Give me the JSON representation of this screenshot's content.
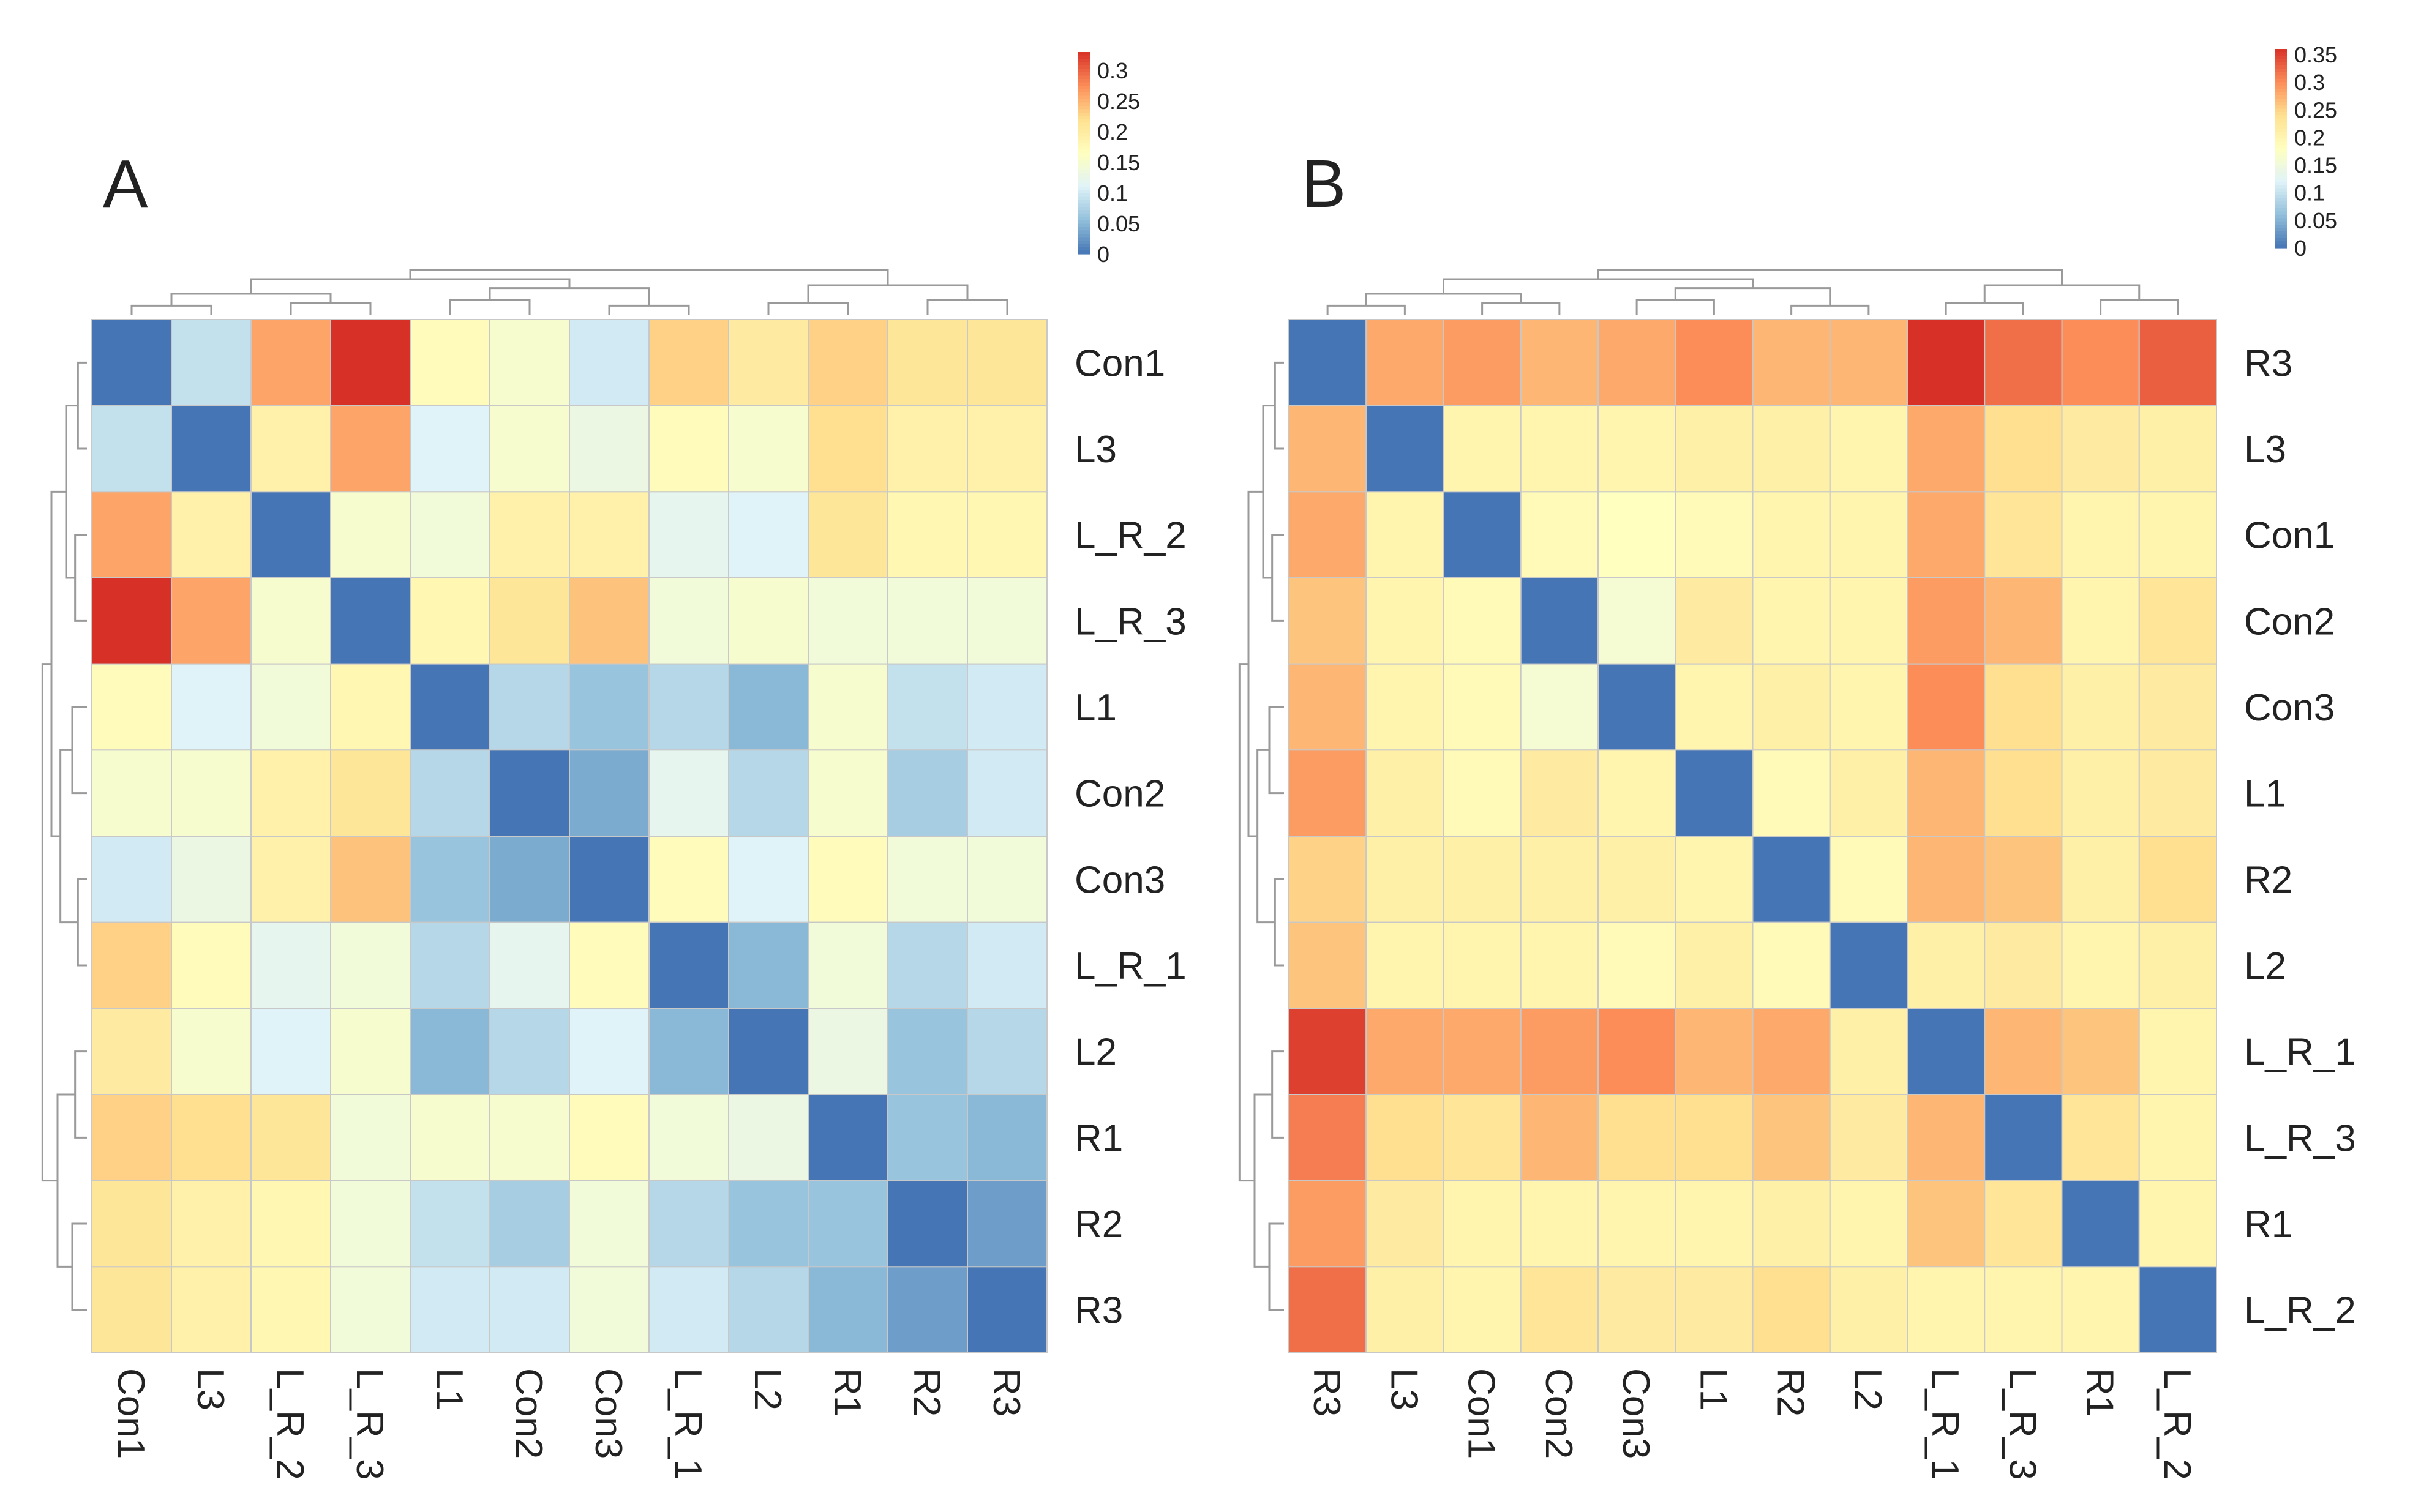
{
  "figure": {
    "panel_a_label": "A",
    "panel_b_label": "B"
  },
  "colors": {
    "scale": [
      "#4575b4",
      "#91bfdb",
      "#e0f3f8",
      "#ffffbf",
      "#fee090",
      "#fc8d59",
      "#d73027"
    ],
    "grid_line": "#c8c8c8",
    "dendrogram": "#9a9a9a"
  },
  "chart_data": [
    {
      "type": "heatmap",
      "panel": "A",
      "title": "",
      "rows": [
        "Con1",
        "L3",
        "L_R_2",
        "L_R_3",
        "L1",
        "Con2",
        "Con3",
        "L_R_1",
        "L2",
        "R1",
        "R2",
        "R3"
      ],
      "columns": [
        "Con1",
        "L3",
        "L_R_2",
        "L_R_3",
        "L1",
        "Con2",
        "Con3",
        "L_R_1",
        "L2",
        "R1",
        "R2",
        "R3"
      ],
      "values": [
        [
          0.0,
          0.09,
          0.26,
          0.33,
          0.17,
          0.15,
          0.1,
          0.23,
          0.2,
          0.23,
          0.21,
          0.21
        ],
        [
          0.09,
          0.0,
          0.19,
          0.26,
          0.11,
          0.15,
          0.13,
          0.17,
          0.15,
          0.22,
          0.19,
          0.19
        ],
        [
          0.26,
          0.19,
          0.0,
          0.15,
          0.14,
          0.19,
          0.19,
          0.12,
          0.11,
          0.21,
          0.18,
          0.18
        ],
        [
          0.33,
          0.26,
          0.15,
          0.0,
          0.18,
          0.21,
          0.24,
          0.14,
          0.15,
          0.14,
          0.14,
          0.14
        ],
        [
          0.17,
          0.11,
          0.14,
          0.18,
          0.0,
          0.08,
          0.06,
          0.08,
          0.05,
          0.15,
          0.09,
          0.1
        ],
        [
          0.15,
          0.15,
          0.19,
          0.21,
          0.08,
          0.0,
          0.04,
          0.12,
          0.08,
          0.15,
          0.07,
          0.1
        ],
        [
          0.1,
          0.13,
          0.19,
          0.24,
          0.06,
          0.04,
          0.0,
          0.17,
          0.11,
          0.17,
          0.14,
          0.14
        ],
        [
          0.23,
          0.17,
          0.12,
          0.14,
          0.08,
          0.12,
          0.17,
          0.0,
          0.05,
          0.14,
          0.08,
          0.1
        ],
        [
          0.2,
          0.15,
          0.11,
          0.15,
          0.05,
          0.08,
          0.11,
          0.05,
          0.0,
          0.13,
          0.06,
          0.08
        ],
        [
          0.23,
          0.22,
          0.21,
          0.14,
          0.15,
          0.15,
          0.17,
          0.14,
          0.13,
          0.0,
          0.06,
          0.05
        ],
        [
          0.21,
          0.19,
          0.18,
          0.14,
          0.09,
          0.07,
          0.14,
          0.08,
          0.06,
          0.06,
          0.0,
          0.03
        ],
        [
          0.21,
          0.19,
          0.18,
          0.14,
          0.1,
          0.1,
          0.14,
          0.1,
          0.08,
          0.05,
          0.03,
          0.0
        ]
      ],
      "colorbar": {
        "min": 0,
        "max": 0.33,
        "ticks": [
          0,
          0.05,
          0.1,
          0.15,
          0.2,
          0.25,
          0.3
        ],
        "tick_labels": [
          "0",
          "0.05",
          "0.1",
          "0.15",
          "0.2",
          "0.25",
          "0.3"
        ]
      }
    },
    {
      "type": "heatmap",
      "panel": "B",
      "title": "",
      "rows": [
        "R3",
        "L3",
        "Con1",
        "Con2",
        "Con3",
        "L1",
        "R2",
        "L2",
        "L_R_1",
        "L_R_3",
        "R1",
        "L_R_2"
      ],
      "columns": [
        "R3",
        "L3",
        "Con1",
        "Con2",
        "Con3",
        "L1",
        "R2",
        "L2",
        "L_R_1",
        "L_R_3",
        "R1",
        "L_R_2"
      ],
      "values": [
        [
          0.0,
          0.28,
          0.29,
          0.27,
          0.28,
          0.3,
          0.27,
          0.27,
          0.36,
          0.32,
          0.3,
          0.33
        ],
        [
          0.27,
          0.0,
          0.2,
          0.2,
          0.2,
          0.21,
          0.21,
          0.2,
          0.28,
          0.24,
          0.22,
          0.21
        ],
        [
          0.28,
          0.2,
          0.0,
          0.19,
          0.18,
          0.19,
          0.2,
          0.2,
          0.28,
          0.23,
          0.2,
          0.2
        ],
        [
          0.26,
          0.2,
          0.19,
          0.0,
          0.16,
          0.22,
          0.2,
          0.2,
          0.29,
          0.27,
          0.2,
          0.23
        ],
        [
          0.27,
          0.2,
          0.19,
          0.16,
          0.0,
          0.2,
          0.21,
          0.2,
          0.3,
          0.24,
          0.21,
          0.22
        ],
        [
          0.29,
          0.21,
          0.19,
          0.22,
          0.2,
          0.0,
          0.19,
          0.21,
          0.27,
          0.24,
          0.21,
          0.22
        ],
        [
          0.25,
          0.21,
          0.21,
          0.21,
          0.21,
          0.2,
          0.0,
          0.19,
          0.27,
          0.26,
          0.21,
          0.24
        ],
        [
          0.26,
          0.2,
          0.2,
          0.2,
          0.19,
          0.21,
          0.19,
          0.0,
          0.21,
          0.22,
          0.2,
          0.21
        ],
        [
          0.35,
          0.28,
          0.28,
          0.29,
          0.3,
          0.27,
          0.28,
          0.21,
          0.0,
          0.27,
          0.26,
          0.2
        ],
        [
          0.31,
          0.24,
          0.23,
          0.27,
          0.24,
          0.24,
          0.26,
          0.22,
          0.27,
          0.0,
          0.23,
          0.2
        ],
        [
          0.29,
          0.22,
          0.2,
          0.2,
          0.2,
          0.2,
          0.21,
          0.2,
          0.26,
          0.23,
          0.0,
          0.2
        ],
        [
          0.32,
          0.21,
          0.2,
          0.23,
          0.22,
          0.22,
          0.24,
          0.21,
          0.2,
          0.2,
          0.2,
          0.0
        ]
      ],
      "colorbar": {
        "min": 0,
        "max": 0.36,
        "ticks": [
          0,
          0.05,
          0.1,
          0.15,
          0.2,
          0.25,
          0.3,
          0.35
        ],
        "tick_labels": [
          "0",
          "0.05",
          "0.1",
          "0.15",
          "0.2",
          "0.25",
          "0.3",
          "0.35"
        ]
      }
    }
  ]
}
